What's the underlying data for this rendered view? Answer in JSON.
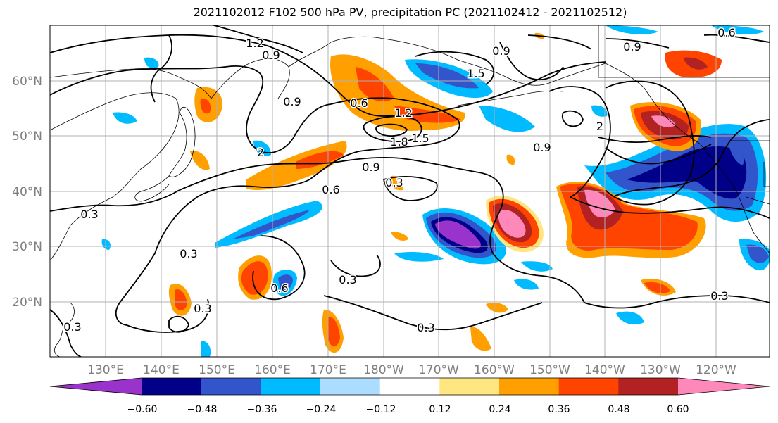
{
  "title": "2021102012 F102 500 hPa PV, precipitation PC (2021102412 - 2021102512)",
  "map": {
    "lat_labels": [
      "60°N",
      "50°N",
      "40°N",
      "30°N",
      "20°N"
    ],
    "lon_labels": [
      "130°E",
      "140°E",
      "150°E",
      "160°E",
      "170°E",
      "180°W",
      "170°W",
      "160°W",
      "150°W",
      "140°W",
      "130°W",
      "120°W"
    ],
    "contour_labels": [
      "1.2",
      "0.9",
      "0.9",
      "0.6",
      "0.9",
      "1.2",
      "1.8",
      "1.5",
      "2",
      "0.9",
      "0.6",
      "0.3",
      "0.3",
      "0.3",
      "0.3",
      "0.3",
      "0.6",
      "0.9",
      "0.9",
      "0.3",
      "1.5",
      "2",
      "0.6",
      "0.3",
      "0.3"
    ],
    "colors": {
      "ocean": "#ffffff",
      "grid": "#b0b0b0",
      "coast": "#000000",
      "axis_label": "#7f7f7f"
    }
  },
  "colorbar": {
    "tick_labels": [
      "−0.60",
      "−0.48",
      "−0.36",
      "−0.24",
      "−0.12",
      "0.12",
      "0.24",
      "0.36",
      "0.48",
      "0.60"
    ],
    "colors": [
      "#9933cc",
      "#000088",
      "#3355cc",
      "#00bbff",
      "#aaddff",
      "#ffffff",
      "#ffe680",
      "#ffa000",
      "#ff4400",
      "#b22222",
      "#ff88bb"
    ]
  }
}
